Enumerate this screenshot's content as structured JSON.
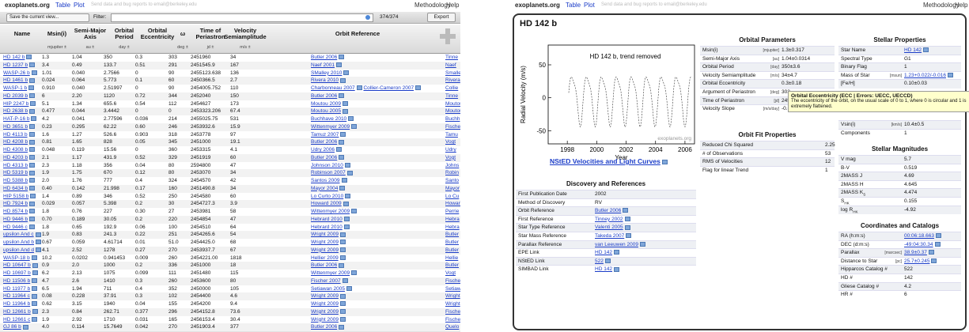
{
  "left": {
    "header": {
      "brand": "exoplanets.org",
      "nav": [
        "Table",
        "Plot"
      ],
      "note": "Send data and bug reports to email@berkeley.edu",
      "right": [
        "Methodology",
        "Help"
      ]
    },
    "toolbar": {
      "save": "Save the current view...",
      "filter": "Filter:",
      "count": "374/374",
      "export": "Export"
    },
    "table": {
      "columns": [
        {
          "name": [
            "Name"
          ]
        },
        {
          "name": [
            "Msin(i)"
          ],
          "unit": "mjupiter ±"
        },
        {
          "name": [
            "Semi-Major",
            "Axis"
          ],
          "unit": "au ±"
        },
        {
          "name": [
            "Orbital",
            "Period"
          ],
          "unit": "day ±"
        },
        {
          "name": [
            "Orbital",
            "Eccentricity"
          ]
        },
        {
          "name": [
            "ω"
          ],
          "unit": "deg ±"
        },
        {
          "name": [
            "Time of",
            "Periastron"
          ],
          "unit": "jd ±"
        },
        {
          "name": [
            "Velocity",
            "Semiamplitude"
          ],
          "unit": "m/s ±"
        },
        {
          "name": [
            "Orbit Reference"
          ]
        }
      ],
      "rows": [
        [
          "HD 142 b",
          "1.3",
          "1.04",
          "350",
          "0.3",
          "303",
          "2451960",
          "34",
          [
            "Butler 2006"
          ],
          "Tinne"
        ],
        [
          "HD 1237 b",
          "3.4",
          "0.49",
          "133.7",
          "0.51",
          "291",
          "2451545.9",
          "167",
          [
            "Naef 2001"
          ],
          "Naef"
        ],
        [
          "WASP-26 b",
          "1.01",
          "0.040",
          "2.7566",
          "0",
          "90",
          "2455123.638",
          "136",
          [
            "SMalley 2010"
          ],
          "Smalle"
        ],
        [
          "HD 1461 b",
          "0.024",
          "0.064",
          "5.773",
          "0.1",
          "60",
          "2450366.5",
          "2.7",
          [
            "Rivera 2010"
          ],
          "Rivera"
        ],
        [
          "WASP-1 b",
          "0.910",
          "0.040",
          "2.51997",
          "0",
          "90",
          "2454005.752",
          "110",
          [
            "Charbonneau 2007",
            "Collier-Cameron 2007"
          ],
          "Collie"
        ],
        [
          "HD 2039 b",
          "6",
          "2.20",
          "1120",
          "0.72",
          "344",
          "2452040",
          "150",
          [
            "Butler 2006"
          ],
          "Tinne"
        ],
        [
          "HIP 2247 b",
          "5.1",
          "1.34",
          "655.6",
          "0.54",
          "112",
          "2454627",
          "173",
          [
            "Moutou 2009"
          ],
          "Moutou"
        ],
        [
          "HD 2638 b",
          "0.477",
          "0.044",
          "3.4442",
          "0",
          "0",
          "2453323.206",
          "67.4",
          [
            "Moutou 2005"
          ],
          "Moutou"
        ],
        [
          "HAT-P-16 b",
          "4.2",
          "0.041",
          "2.77596",
          "0.036",
          "214",
          "2455025.75",
          "531",
          [
            "Buchhave 2010"
          ],
          "Buchh"
        ],
        [
          "HD 3651 b",
          "0.23",
          "0.295",
          "62.22",
          "0.60",
          "246",
          "2453932.6",
          "15.9",
          [
            "Wittenmyer 2009"
          ],
          "Fische"
        ],
        [
          "HD 4113 b",
          "1.6",
          "1.27",
          "526.6",
          "0.903",
          "318",
          "2453778",
          "97",
          [
            "Tamuz 2007"
          ],
          "Tamu"
        ],
        [
          "HD 4208 b",
          "0.81",
          "1.65",
          "828",
          "0.05",
          "345",
          "2451000",
          "19.1",
          [
            "Butler 2006"
          ],
          "Vogt"
        ],
        [
          "HD 4308 b",
          "0.048",
          "0.119",
          "15.56",
          "0",
          "360",
          "2453315",
          "4.1",
          [
            "Udry 2006"
          ],
          "Udry"
        ],
        [
          "HD 4203 b",
          "2.1",
          "1.17",
          "431.9",
          "0.52",
          "329",
          "2451919",
          "60",
          [
            "Butler 2006"
          ],
          "Vogt"
        ],
        [
          "HD 4313 b",
          "2.3",
          "1.18",
          "356",
          "0.04",
          "80",
          "2594800",
          "47",
          [
            "Johnson 2010"
          ],
          "Johns"
        ],
        [
          "HD 5319 b",
          "1.9",
          "1.75",
          "670",
          "0.12",
          "80",
          "2453070",
          "34",
          [
            "Robinson 2007"
          ],
          "Robin"
        ],
        [
          "HD 5388 b",
          "2.0",
          "1.76",
          "777",
          "0.4",
          "324",
          "2454570",
          "42",
          [
            "Santos 2009"
          ],
          "Santo"
        ],
        [
          "HD 6434 b",
          "0.40",
          "0.142",
          "21.998",
          "0.17",
          "160",
          "2451490.8",
          "34",
          [
            "Mayor 2004"
          ],
          "Mayor"
        ],
        [
          "HIP 5158 b",
          "1.4",
          "0.89",
          "346",
          "0.52",
          "250",
          "2454580",
          "60",
          [
            "Lo Curto 2010"
          ],
          "Lo Cu"
        ],
        [
          "HD 7924 b",
          "0.029",
          "0.057",
          "5.398",
          "0.2",
          "30",
          "2454727.3",
          "3.9",
          [
            "Howard 2009"
          ],
          "Howard"
        ],
        [
          "HD 8574 b",
          "1.8",
          "0.76",
          "227",
          "0.30",
          "27",
          "2453981",
          "58",
          [
            "Wittenmyer 2009"
          ],
          "Perrie"
        ],
        [
          "HD 9446 b",
          "0.70",
          "0.189",
          "30.05",
          "0.2",
          "220",
          "2454854",
          "47",
          [
            "Hebrard 2010"
          ],
          "Hebra"
        ],
        [
          "HD 9446 c",
          "1.8",
          "0.65",
          "192.9",
          "0.06",
          "100",
          "2454510",
          "64",
          [
            "Hebrard 2010"
          ],
          "Hebra"
        ],
        [
          "upsilon And c",
          "1.9",
          "0.83",
          "241.3",
          "0.22",
          "251",
          "2454265.6",
          "54",
          [
            "Wright 2009"
          ],
          "Butler"
        ],
        [
          "upsilon And b",
          "0.67",
          "0.059",
          "4.61714",
          "0.01",
          "51.0",
          "2454425.0",
          "68",
          [
            "Wright 2009"
          ],
          "Butler"
        ],
        [
          "upsilon And d",
          "4.1",
          "2.52",
          "1278",
          "0.27",
          "270",
          "2453937.7",
          "67",
          [
            "Wright 2009"
          ],
          "Butler"
        ],
        [
          "WASP-18 b",
          "10.2",
          "0.0202",
          "0.941453",
          "0.009",
          "260",
          "2454221.00",
          "1818",
          [
            "Hellier 2009"
          ],
          "Hellie"
        ],
        [
          "HD 10647 b",
          "0.9",
          "2.0",
          "1000",
          "0.2",
          "336",
          "2451000",
          "18",
          [
            "Butler 2006"
          ],
          "Butler"
        ],
        [
          "HD 10697 b",
          "6.2",
          "2.13",
          "1075",
          "0.099",
          "111",
          "2451480",
          "115",
          [
            "Wittenmyer 2009"
          ],
          "Vogt"
        ],
        [
          "HD 11506 b",
          "4.7",
          "2.6",
          "1410",
          "0.3",
          "260",
          "2453600",
          "80",
          [
            "Fischer 2007"
          ],
          "Fische"
        ],
        [
          "HD 11977 b",
          "6.5",
          "1.94",
          "711",
          "0.4",
          "352",
          "2450000",
          "105",
          [
            "Setiawan 2005"
          ],
          "Setiaw"
        ],
        [
          "HD 11964 c",
          "0.08",
          "0.228",
          "37.91",
          "0.3",
          "102",
          "2454400",
          "4.6",
          [
            "Wright 2009"
          ],
          "Wright"
        ],
        [
          "HD 11964 b",
          "0.62",
          "3.15",
          "1940",
          "0.04",
          "155",
          "2454200",
          "9.4",
          [
            "Wright 2009"
          ],
          "Wright"
        ],
        [
          "HD 12661 b",
          "2.3",
          "0.84",
          "262.71",
          "0.377",
          "296",
          "2454152.8",
          "73.6",
          [
            "Wright 2009"
          ],
          "Fische"
        ],
        [
          "HD 12661 c",
          "1.9",
          "2.92",
          "1710",
          "0.031",
          "165",
          "2456153.4",
          "30.4",
          [
            "Wright 2009"
          ],
          "Fische"
        ],
        [
          "GJ 86 b",
          "4.0",
          "0.114",
          "15.7649",
          "0.042",
          "270",
          "2451903.4",
          "377",
          [
            "Butler 2006"
          ],
          "Quelo"
        ]
      ]
    }
  },
  "right": {
    "header": {
      "brand": "exoplanets.org",
      "nav": [
        "Table",
        "Plot"
      ],
      "note": "Send data and bug reports to email@berkeley.edu",
      "right": [
        "Methodology",
        "Help"
      ]
    },
    "title": "HD 142 b",
    "plot": {
      "title": "HD 142 b, trend removed",
      "ylabel": "Radial Velocity (m/s)",
      "xlabel": "Year",
      "watermark": "exoplanets.org",
      "xlim": [
        1996.7,
        2006.65
      ],
      "ylim": [
        -70,
        80
      ],
      "xticks": [
        1998,
        2000,
        2002,
        2004,
        2006
      ],
      "yticks": [
        50,
        0,
        -50
      ]
    },
    "curves_link": "NStED Velocities and Light Curves",
    "discovery": {
      "heading": "Discovery and References",
      "rows": [
        {
          "label": "First Publication Date",
          "value": "2002"
        },
        {
          "label": "Method of Discovery",
          "value": "RV"
        },
        {
          "label": "Orbit Reference",
          "value": "Butler 2006",
          "link": true
        },
        {
          "label": "First Reference",
          "value": "Tinney 2002",
          "link": true
        },
        {
          "label": "Star Type Reference",
          "value": "Valenti 2005",
          "link": true
        },
        {
          "label": "Star Mass Reference",
          "value": "Takeda 2007",
          "link": true
        },
        {
          "label": "Parallax Reference",
          "value": "van Leeuwen 2009",
          "link": true
        },
        {
          "label": "EPE Link",
          "value": "HD 142",
          "link": true
        },
        {
          "label": "NStED Link",
          "value": "522",
          "link": true
        },
        {
          "label": "SIMBAD Link",
          "value": "HD 142",
          "link": true
        }
      ]
    },
    "orbital": {
      "heading": "Orbital Parameters",
      "rows": [
        {
          "label": "Msin(i)",
          "unit": "[mjupiter]",
          "value": "1.3±0.317"
        },
        {
          "label": "Semi-Major Axis",
          "unit": "[au]",
          "value": "1.04±0.0314"
        },
        {
          "label": "Orbital Period",
          "unit": "[day]",
          "value": "350±3.6"
        },
        {
          "label": "Velocity Semiamplitude",
          "unit": "[m/s]",
          "value": "34±4.7"
        },
        {
          "label": "Orbital Eccentricity",
          "value": "0.3±0.18"
        },
        {
          "label": "Argument of Periastron",
          "unit": "[deg]",
          "value": "303"
        },
        {
          "label": "Time of Periastron",
          "unit": "[jd]",
          "value": "2451960"
        },
        {
          "label": "Velocity Slope",
          "unit": "[m/s/day]",
          "value": "-0.028±0.00301"
        }
      ]
    },
    "fit": {
      "heading": "Orbit Fit Properties",
      "rows": [
        {
          "label": "Reduced Chi Squared",
          "value": "2.25"
        },
        {
          "label": "# of Observations",
          "value": "53"
        },
        {
          "label": "RMS of Velocities",
          "value": "12"
        },
        {
          "label": "Flag for linear Trend",
          "value": "1"
        }
      ]
    },
    "stellar": {
      "heading": "Stellar Properties",
      "rows": [
        {
          "label": "Star Name",
          "value": "HD 142",
          "link": true
        },
        {
          "label": "Spectral Type",
          "value": "G1"
        },
        {
          "label": "Binary Flag",
          "value": "1"
        },
        {
          "label": "Mass of Star",
          "unit": "[msun]",
          "value": "1.23+0.022/-0.016",
          "link": true
        },
        {
          "label": "[Fe/H]",
          "value": "0.10±0.03"
        }
      ],
      "more_rows": [
        {
          "label": "Vsin(i)",
          "unit": "[km/s]",
          "value": "10.4±0.5"
        },
        {
          "label": "Components",
          "value": "1"
        }
      ]
    },
    "magnitudes": {
      "heading": "Stellar Magnitudes",
      "rows": [
        {
          "label": "V mag",
          "value": "5.7"
        },
        {
          "label": "B-V",
          "value": "0.519"
        },
        {
          "label": "2MASS J",
          "value": "4.69"
        },
        {
          "label": "2MASS H",
          "value": "4.645"
        },
        {
          "label": "2MASS K",
          "sub": "S",
          "value": "4.474"
        },
        {
          "label": "S",
          "sub": "HK",
          "value": "0.155"
        },
        {
          "label": "log R",
          "sub": "HK",
          "value": "-4.92"
        }
      ]
    },
    "coords": {
      "heading": "Coordinates and Catalogs",
      "rows": [
        {
          "label": "RA (h:m:s)",
          "value": "00:06:18.663",
          "link": true
        },
        {
          "label": "DEC (d:m:s)",
          "value": "-49:04:30.34",
          "link": true
        },
        {
          "label": "Parallax",
          "unit": "[marcsec]",
          "value": "38.9±0.37",
          "link": true
        },
        {
          "label": "Distance to Star",
          "unit": "[pc]",
          "value": "25.7±0.245",
          "link": true
        },
        {
          "label": "Hipparcos Catalog #",
          "value": "522"
        },
        {
          "label": "HD #",
          "value": "142"
        },
        {
          "label": "Gliese Catalog #",
          "value": "4.2"
        },
        {
          "label": "HR #",
          "value": "6"
        }
      ]
    },
    "tooltip": {
      "title": "Orbital Eccentricity (ECC | Errors: UECC, UECCD)",
      "body": "The eccentricity of the orbit, on the usual scale of 0 to 1, where 0 is circular and 1 is extremely flattened."
    }
  }
}
